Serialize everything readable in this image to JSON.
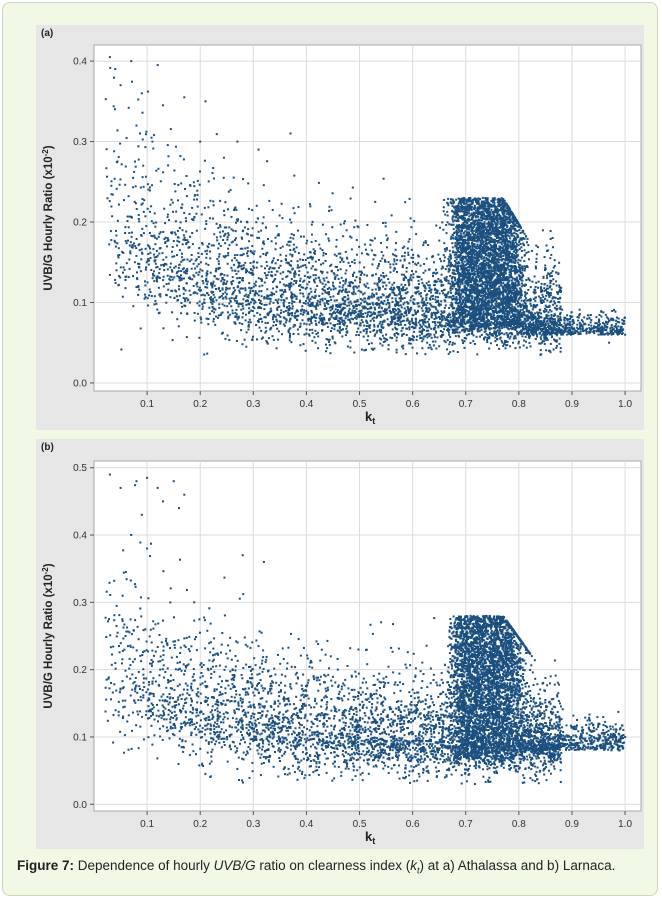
{
  "chart_data": [
    {
      "type": "scatter",
      "panel_label": "(a)",
      "xlabel": "k",
      "xlabel_sub": "t",
      "ylabel": "UVB/G Hourly Ratio (x10",
      "ylabel_sup": "-2",
      "ylabel_close": ")",
      "xlim": [
        0.0,
        1.03
      ],
      "ylim": [
        -0.01,
        0.42
      ],
      "x_ticks": [
        "0.1",
        "0.2",
        "0.3",
        "0.4",
        "0.5",
        "0.6",
        "0.7",
        "0.8",
        "0.9",
        "1.0"
      ],
      "y_ticks": [
        "0.0",
        "0.1",
        "0.2",
        "0.3",
        "0.4"
      ],
      "grid": true,
      "marker_color": "#1a4f7e",
      "point_count_approx": 8000,
      "x": [
        0.03,
        0.04,
        0.05,
        0.07,
        0.09,
        0.12,
        0.17,
        0.21,
        0.13,
        0.08,
        0.11,
        0.2,
        0.27,
        0.31,
        0.37,
        0.95,
        0.97,
        0.98,
        1.0,
        0.92,
        0.88
      ],
      "y": [
        0.405,
        0.39,
        0.37,
        0.4,
        0.36,
        0.395,
        0.355,
        0.35,
        0.345,
        0.32,
        0.3,
        0.3,
        0.3,
        0.29,
        0.31,
        0.06,
        0.05,
        0.07,
        0.06,
        0.07,
        0.06
      ]
    },
    {
      "type": "scatter",
      "panel_label": "(b)",
      "xlabel": "k",
      "xlabel_sub": "t",
      "ylabel": "UVB/G Hourly Ratio (x10",
      "ylabel_sup": "-2",
      "ylabel_close": ")",
      "xlim": [
        0.0,
        1.03
      ],
      "ylim": [
        -0.01,
        0.51
      ],
      "x_ticks": [
        "0.1",
        "0.2",
        "0.3",
        "0.4",
        "0.5",
        "0.6",
        "0.7",
        "0.8",
        "0.9",
        "1.0"
      ],
      "y_ticks": [
        "0.0",
        "0.1",
        "0.2",
        "0.3",
        "0.4",
        "0.5"
      ],
      "grid": true,
      "marker_color": "#1a4f7e",
      "point_count_approx": 8000,
      "x": [
        0.03,
        0.05,
        0.08,
        0.1,
        0.12,
        0.15,
        0.17,
        0.16,
        0.13,
        0.09,
        0.07,
        0.1,
        0.28,
        0.32,
        0.95,
        0.98,
        1.0,
        0.92,
        0.86
      ],
      "y": [
        0.49,
        0.47,
        0.48,
        0.485,
        0.47,
        0.48,
        0.46,
        0.44,
        0.45,
        0.43,
        0.4,
        0.38,
        0.37,
        0.36,
        0.12,
        0.09,
        0.1,
        0.11,
        0.19
      ]
    }
  ],
  "caption": {
    "label": "Figure 7:",
    "text1": " Dependence of hourly ",
    "italic1": "UVB/G",
    "text2": " ratio on clearness index (",
    "italic2": "k",
    "italic2_sub": "t",
    "text3": ") at a) Athalassa and b) Larnaca."
  }
}
